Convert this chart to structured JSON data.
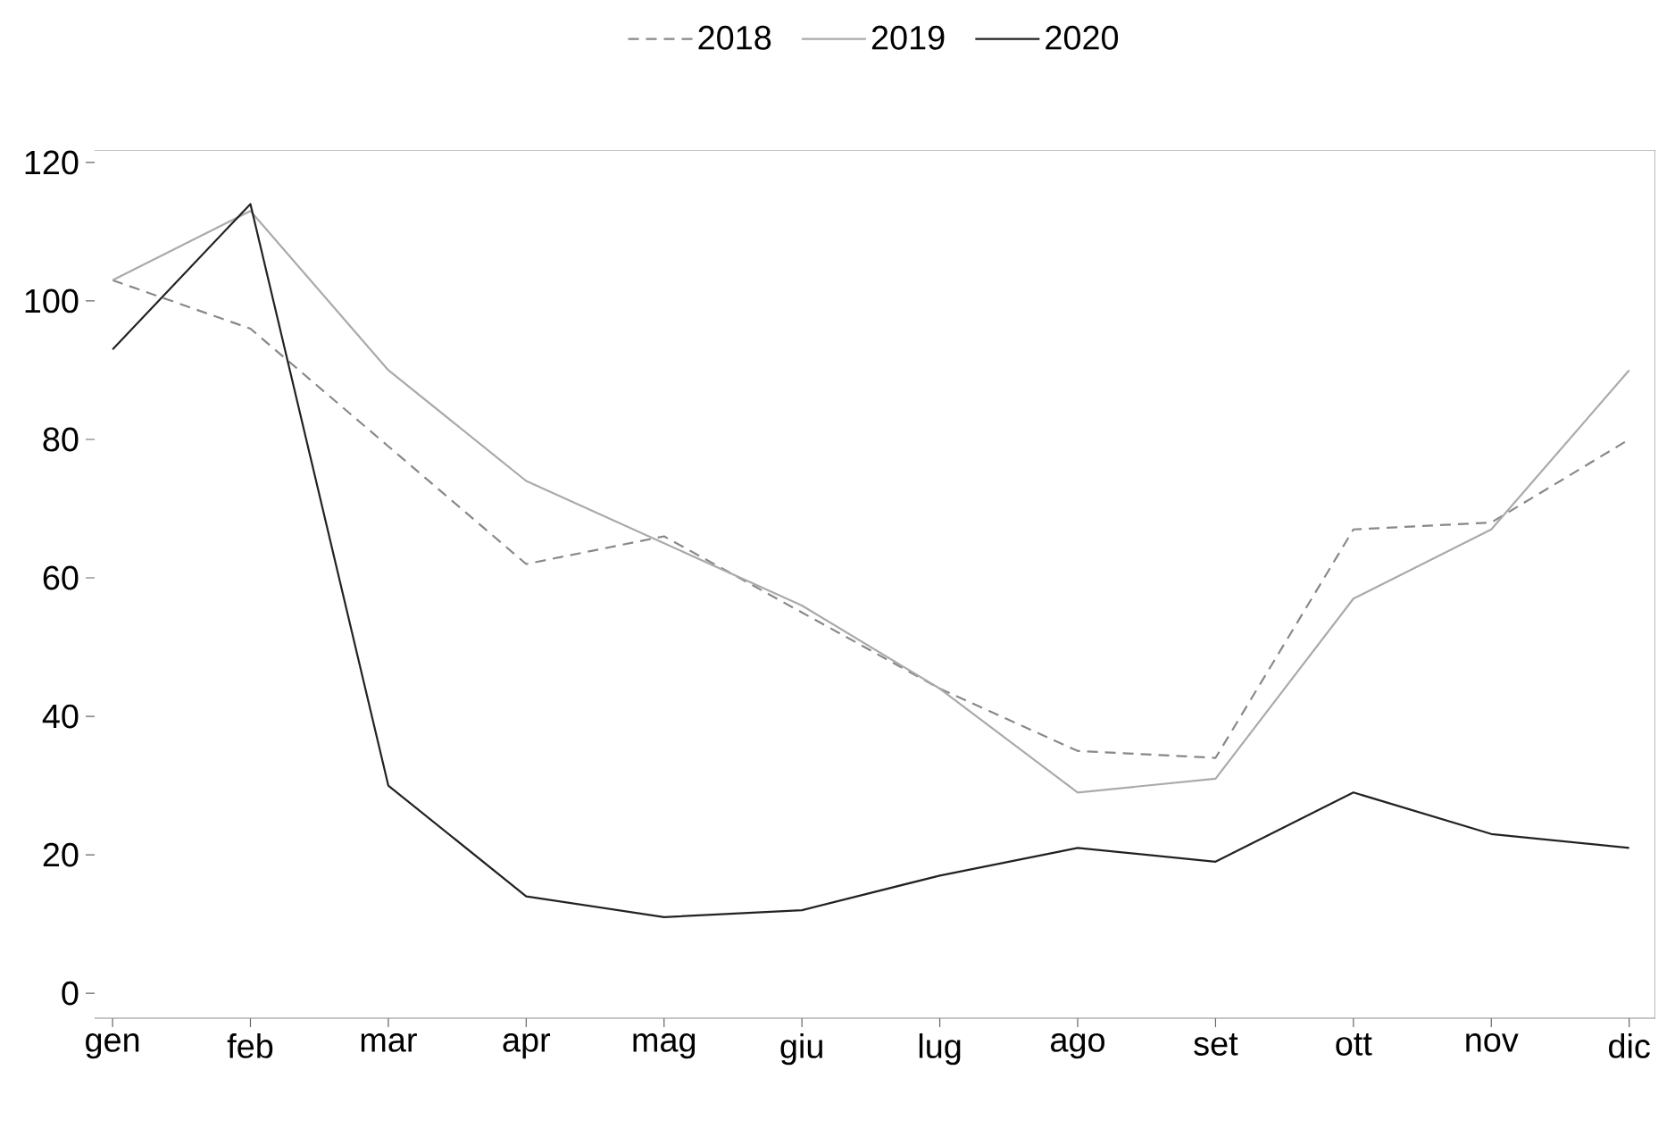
{
  "chart_data": {
    "type": "line",
    "categories": [
      "gen",
      "feb",
      "mar",
      "apr",
      "mag",
      "giu",
      "lug",
      "ago",
      "set",
      "ott",
      "nov",
      "dic"
    ],
    "series": [
      {
        "name": "2018",
        "color": "#888888",
        "line_style": "dashed",
        "values": [
          103,
          96,
          79,
          62,
          66,
          55,
          44,
          35,
          34,
          67,
          68,
          80
        ]
      },
      {
        "name": "2019",
        "color": "#aaaaaa",
        "line_style": "solid",
        "values": [
          103,
          113,
          90,
          74,
          65,
          56,
          44,
          29,
          31,
          57,
          67,
          90
        ]
      },
      {
        "name": "2020",
        "color": "#222222",
        "line_style": "solid",
        "values": [
          93,
          114,
          30,
          14,
          11,
          12,
          17,
          21,
          19,
          29,
          23,
          21
        ]
      }
    ],
    "ylim": [
      -3.6,
      121.8
    ],
    "yticks": [
      0,
      20,
      40,
      60,
      80,
      100,
      120
    ],
    "grid": false,
    "legend": "top",
    "marker": "none"
  }
}
